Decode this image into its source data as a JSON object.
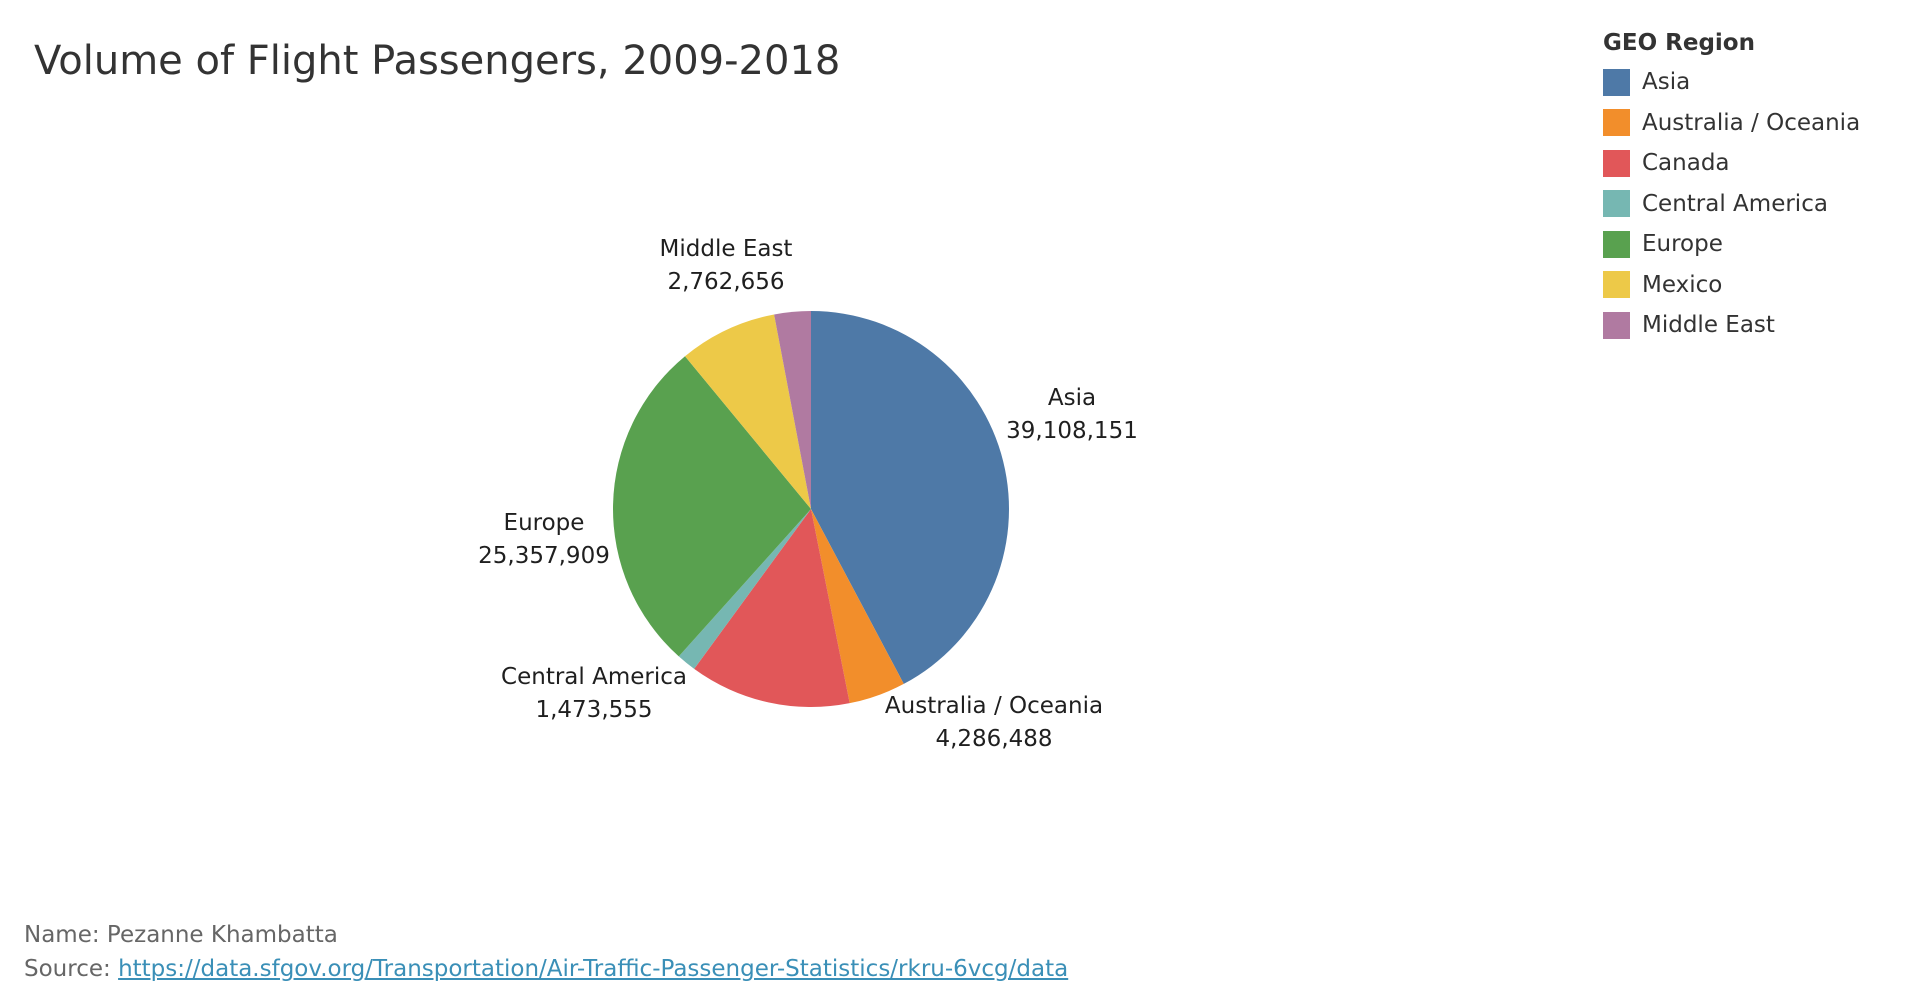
{
  "chart_data": {
    "type": "pie",
    "title": "Volume of Flight Passengers, 2009-2018",
    "legend_title": "GEO Region",
    "legend_position": "top-right",
    "slices": [
      {
        "label": "Asia",
        "value": 39108151,
        "value_text": "39,108,151",
        "color": "#4e79a7",
        "show_label": true
      },
      {
        "label": "Australia / Oceania",
        "value": 4286488,
        "value_text": "4,286,488",
        "color": "#f28e2b",
        "show_label": true
      },
      {
        "label": "Canada",
        "value": 12200000,
        "value_text": "",
        "color": "#e15759",
        "show_label": false
      },
      {
        "label": "Central America",
        "value": 1473555,
        "value_text": "1,473,555",
        "color": "#76b7b2",
        "show_label": true
      },
      {
        "label": "Europe",
        "value": 25357909,
        "value_text": "25,357,909",
        "color": "#59a14f",
        "show_label": true
      },
      {
        "label": "Mexico",
        "value": 7400000,
        "value_text": "",
        "color": "#edc948",
        "show_label": true
      },
      {
        "label": "Middle East",
        "value": 2762656,
        "value_text": "2,762,656",
        "color": "#b07aa1",
        "show_label": true
      }
    ]
  },
  "footer": {
    "name_line": "Name: Pezanne Khambatta",
    "source_prefix": "Source: ",
    "source_url": "https://data.sfgov.org/Transportation/Air-Traffic-Passenger-Statistics/rkru-6vcg/data"
  }
}
